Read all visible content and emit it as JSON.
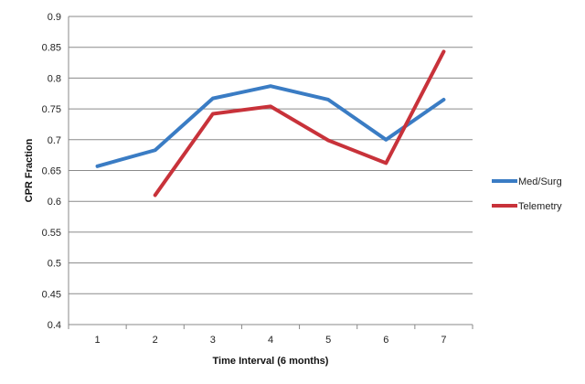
{
  "chart_data": {
    "type": "line",
    "title": "",
    "xlabel": "Time Interval (6 months)",
    "ylabel": "CPR Fraction",
    "categories": [
      "1",
      "2",
      "3",
      "4",
      "5",
      "6",
      "7"
    ],
    "ylim": [
      0.4,
      0.9
    ],
    "yticks": [
      "0.4",
      "0.45",
      "0.5",
      "0.55",
      "0.6",
      "0.65",
      "0.7",
      "0.75",
      "0.8",
      "0.85",
      "0.9"
    ],
    "grid": true,
    "legend_position": "right",
    "series": [
      {
        "name": "Med/Surg",
        "color": "#3a7cc4",
        "values": [
          0.657,
          0.683,
          0.767,
          0.787,
          0.765,
          0.7,
          0.765
        ]
      },
      {
        "name": "Telemetry",
        "color": "#c8323a",
        "values": [
          null,
          0.61,
          0.742,
          0.754,
          0.699,
          0.662,
          0.843
        ]
      }
    ]
  }
}
